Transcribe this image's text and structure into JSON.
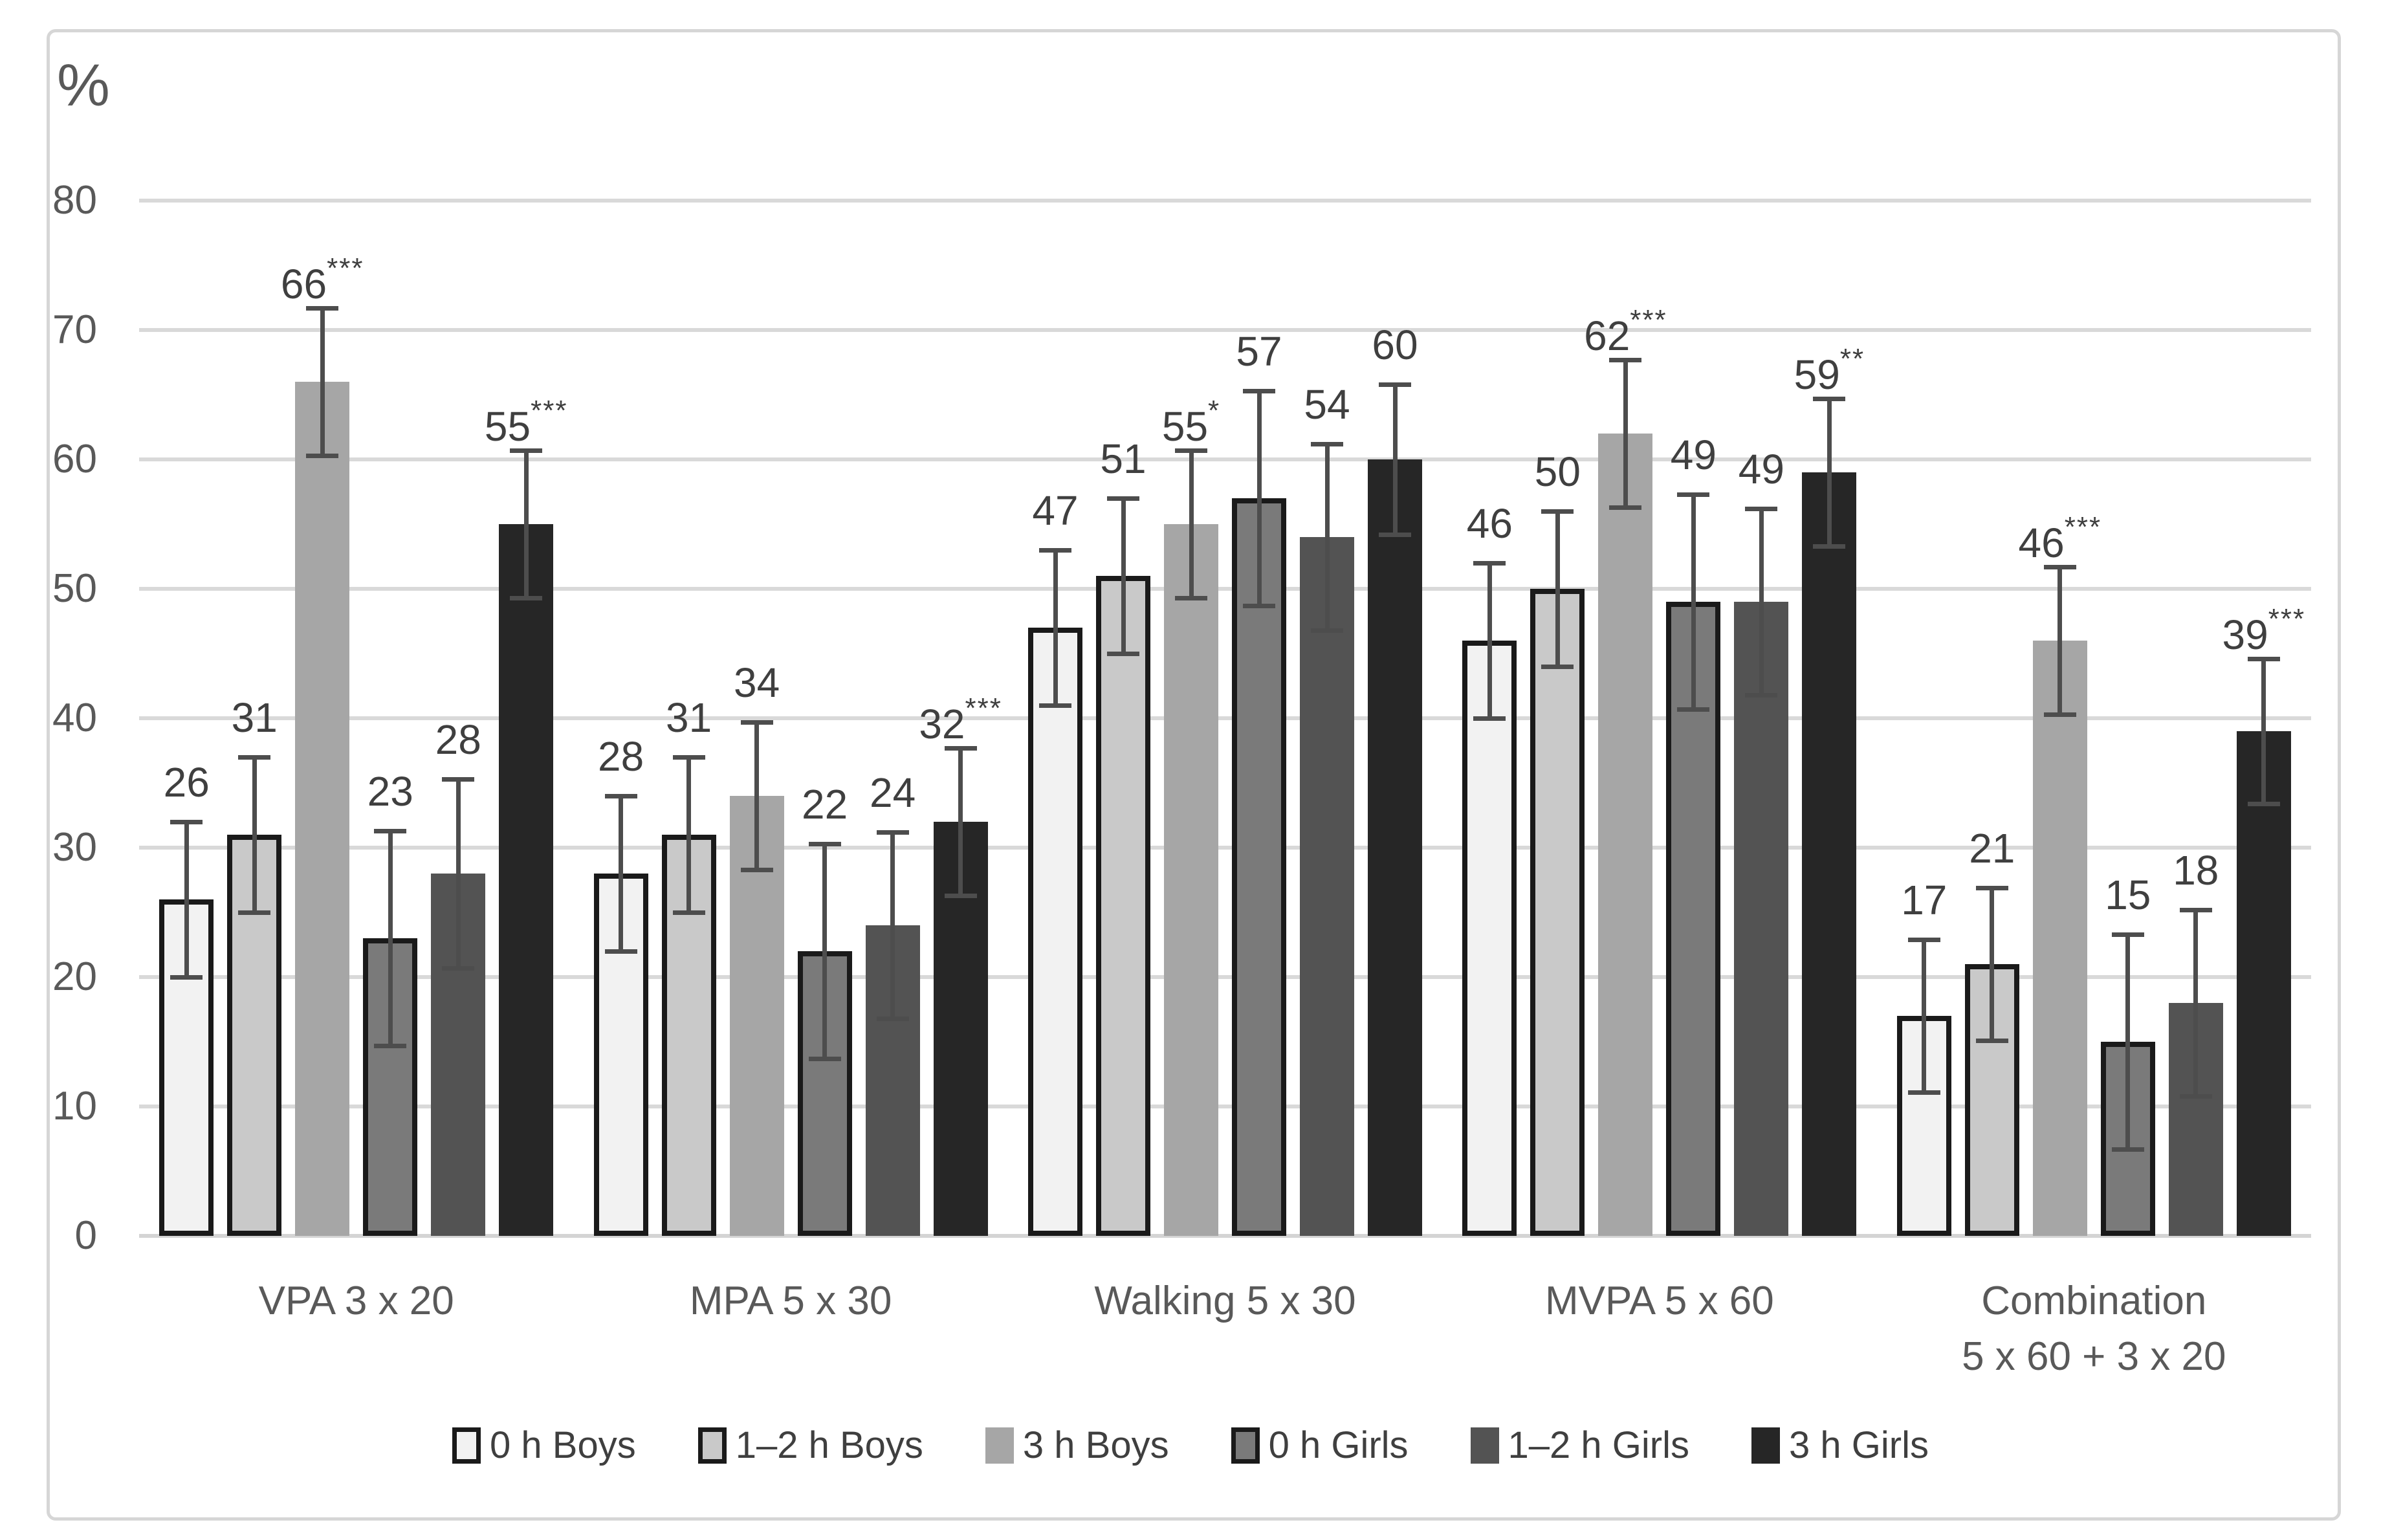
{
  "colors": {
    "background": "#ffffff",
    "figure_border": "#d6d6d6",
    "grid": "#d9d9d9",
    "axis_line": "#d4d4d4",
    "error_bar": "#4d4d4d",
    "bar_border": "#1a1a1a",
    "tick_text": "#595959",
    "value_text": "#3f3f3f",
    "category_text": "#595959",
    "legend_text": "#3f3f3f"
  },
  "chart_data": {
    "type": "bar",
    "ylabel": "%",
    "ylim": [
      0,
      80
    ],
    "yticks": [
      0,
      10,
      20,
      30,
      40,
      50,
      60,
      70,
      80
    ],
    "grid": true,
    "legend_position": "bottom",
    "categories": [
      {
        "line1": "VPA 3 x 20",
        "line2": ""
      },
      {
        "line1": "MPA 5 x 30",
        "line2": ""
      },
      {
        "line1": "Walking 5 x 30",
        "line2": ""
      },
      {
        "line1": "MVPA 5 x 60",
        "line2": ""
      },
      {
        "line1": "Combination",
        "line2": "5 x 60 + 3 x 20"
      }
    ],
    "series": [
      {
        "name": "0 h Boys",
        "fill": "#f2f2f2",
        "outlined": true,
        "values": [
          26,
          28,
          47,
          46,
          17
        ],
        "errors": [
          6,
          6,
          6,
          6,
          5.9
        ],
        "sig": [
          "",
          "",
          "",
          "",
          ""
        ]
      },
      {
        "name": "1–2 h Boys",
        "fill": "#c9c9c9",
        "outlined": true,
        "values": [
          31,
          31,
          51,
          50,
          21
        ],
        "errors": [
          6,
          6,
          6,
          6,
          5.9
        ],
        "sig": [
          "",
          "",
          "",
          "",
          ""
        ]
      },
      {
        "name": "3 h Boys",
        "fill": "#a6a6a6",
        "outlined": false,
        "values": [
          66,
          34,
          55,
          62,
          46
        ],
        "errors": [
          5.7,
          5.7,
          5.7,
          5.7,
          5.7
        ],
        "sig": [
          "***",
          "",
          "*",
          "***",
          "***"
        ]
      },
      {
        "name": "0 h Girls",
        "fill": "#7a7a7a",
        "outlined": true,
        "values": [
          23,
          22,
          57,
          49,
          15
        ],
        "errors": [
          8.3,
          8.3,
          8.3,
          8.3,
          8.3
        ],
        "sig": [
          "",
          "",
          "",
          "",
          ""
        ]
      },
      {
        "name": "1–2 h Girls",
        "fill": "#535353",
        "outlined": false,
        "values": [
          28,
          24,
          54,
          49,
          18
        ],
        "errors": [
          7.3,
          7.2,
          7.2,
          7.2,
          7.2
        ],
        "sig": [
          "",
          "",
          "",
          "",
          ""
        ]
      },
      {
        "name": "3 h Girls",
        "fill": "#262626",
        "outlined": false,
        "values": [
          55,
          32,
          60,
          59,
          39
        ],
        "errors": [
          5.7,
          5.7,
          5.8,
          5.7,
          5.6
        ],
        "sig": [
          "***",
          "***",
          "",
          "**",
          "***"
        ]
      }
    ]
  }
}
